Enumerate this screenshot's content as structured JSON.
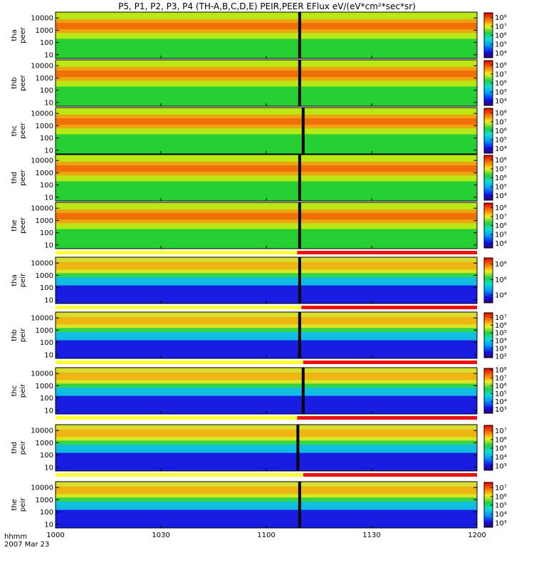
{
  "title": "P5, P1, P2, P3, P4 (TH-A,B,C,D,E) PEIR,PEER EFlux eV/(eV*cm²*sec*sr)",
  "time_label": "hhmm",
  "date_label": "2007 Mar 23",
  "colors": {
    "background": "#ffffff",
    "flag_yellow": "#ffff33",
    "flag_red": "#ee1111"
  },
  "chart_data": {
    "type": "heatmap",
    "x_tick_labels": [
      "1000",
      "1030",
      "1100",
      "1130",
      "1200"
    ],
    "x_ticks_minutes": [
      0,
      30,
      60,
      90,
      120
    ],
    "x_range_minutes": [
      0,
      120
    ],
    "y_tick_labels": [
      "10",
      "100",
      "1000",
      "10000"
    ],
    "y_log": true,
    "y_range": [
      5,
      30000
    ],
    "panels": [
      {
        "probe": "tha",
        "species": "peer",
        "label": "tha peer",
        "cb_ticks": [
          "10⁸",
          "10⁷",
          "10⁶",
          "10⁵",
          "10⁴"
        ],
        "cb_exp": [
          8,
          7,
          6,
          5,
          4
        ],
        "cb_range": [
          3.5,
          8.5
        ],
        "gap_minutes": 69.5,
        "flag": false
      },
      {
        "probe": "thb",
        "species": "peer",
        "label": "thb peer",
        "cb_ticks": [
          "10⁸",
          "10⁷",
          "10⁶",
          "10⁵",
          "10⁴"
        ],
        "cb_exp": [
          8,
          7,
          6,
          5,
          4
        ],
        "cb_range": [
          3.5,
          8.5
        ],
        "gap_minutes": 69.5,
        "flag": false
      },
      {
        "probe": "thc",
        "species": "peer",
        "label": "thc peer",
        "cb_ticks": [
          "10⁸",
          "10⁷",
          "10⁶",
          "10⁵",
          "10⁴"
        ],
        "cb_exp": [
          8,
          7,
          6,
          5,
          4
        ],
        "cb_range": [
          3.5,
          8.5
        ],
        "gap_minutes": 70.5,
        "flag": false
      },
      {
        "probe": "thd",
        "species": "peer",
        "label": "thd peer",
        "cb_ticks": [
          "10⁸",
          "10⁷",
          "10⁶",
          "10⁵",
          "10⁴"
        ],
        "cb_exp": [
          8,
          7,
          6,
          5,
          4
        ],
        "cb_range": [
          3.5,
          8.5
        ],
        "gap_minutes": 69.5,
        "flag": false
      },
      {
        "probe": "the",
        "species": "peer",
        "label": "the peer",
        "cb_ticks": [
          "10⁸",
          "10⁷",
          "10⁶",
          "10⁵",
          "10⁴"
        ],
        "cb_exp": [
          8,
          7,
          6,
          5,
          4
        ],
        "cb_range": [
          3.5,
          8.5
        ],
        "gap_minutes": 69.5,
        "flag": true,
        "flag_switch_minutes": 68.8
      },
      {
        "probe": "tha",
        "species": "peir",
        "label": "tha peir",
        "cb_ticks": [
          "10⁸",
          "10⁶",
          "10⁴"
        ],
        "cb_exp": [
          8,
          6,
          4
        ],
        "cb_range": [
          3.0,
          8.8
        ],
        "gap_minutes": 69.5,
        "flag": true,
        "flag_switch_minutes": 70.0
      },
      {
        "probe": "thb",
        "species": "peir",
        "label": "thb peir",
        "cb_ticks": [
          "10⁷",
          "10⁶",
          "10⁵",
          "10⁴",
          "10³",
          "10²"
        ],
        "cb_exp": [
          7,
          6,
          5,
          4,
          3,
          2
        ],
        "cb_range": [
          1.8,
          7.6
        ],
        "gap_minutes": 69.5,
        "flag": true,
        "flag_switch_minutes": 70.5
      },
      {
        "probe": "thc",
        "species": "peir",
        "label": "thc peir",
        "cb_ticks": [
          "10⁸",
          "10⁷",
          "10⁶",
          "10⁵",
          "10⁴",
          "10³"
        ],
        "cb_exp": [
          8,
          7,
          6,
          5,
          4,
          3
        ],
        "cb_range": [
          2.5,
          8.2
        ],
        "gap_minutes": 70.5,
        "flag": true,
        "flag_switch_minutes": 68.8
      },
      {
        "probe": "thd",
        "species": "peir",
        "label": "thd peir",
        "cb_ticks": [
          "10⁷",
          "10⁶",
          "10⁵",
          "10⁴",
          "10³"
        ],
        "cb_exp": [
          7,
          6,
          5,
          4,
          3
        ],
        "cb_range": [
          2.5,
          7.6
        ],
        "gap_minutes": 69.0,
        "flag": true,
        "flag_switch_minutes": 70.5
      },
      {
        "probe": "the",
        "species": "peir",
        "label": "the peir",
        "cb_ticks": [
          "10⁷",
          "10⁶",
          "10⁵",
          "10⁴",
          "10³"
        ],
        "cb_exp": [
          7,
          6,
          5,
          4,
          3
        ],
        "cb_range": [
          2.5,
          7.6
        ],
        "gap_minutes": 69.5,
        "flag": false
      }
    ]
  }
}
